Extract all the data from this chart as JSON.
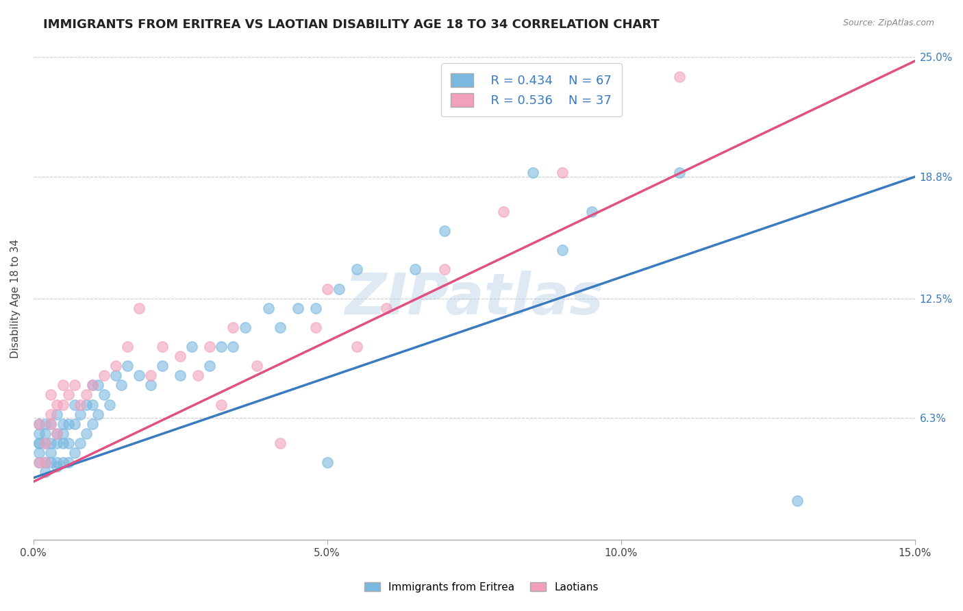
{
  "title": "IMMIGRANTS FROM ERITREA VS LAOTIAN DISABILITY AGE 18 TO 34 CORRELATION CHART",
  "source": "Source: ZipAtlas.com",
  "ylabel": "Disability Age 18 to 34",
  "xmin": 0.0,
  "xmax": 0.15,
  "ymin": 0.0,
  "ymax": 0.25,
  "right_ytick_vals": [
    0.063,
    0.125,
    0.188,
    0.25
  ],
  "right_ytick_labels": [
    "6.3%",
    "12.5%",
    "18.8%",
    "25.0%"
  ],
  "xtick_vals": [
    0.0,
    0.05,
    0.1,
    0.15
  ],
  "xtick_labels": [
    "0.0%",
    "5.0%",
    "10.0%",
    "15.0%"
  ],
  "series1_label": "Immigrants from Eritrea",
  "series1_R": 0.434,
  "series1_N": 67,
  "series1_color": "#7ab8e0",
  "series1_line_color": "#3a7bbf",
  "series2_label": "Laotians",
  "series2_R": 0.536,
  "series2_N": 37,
  "series2_color": "#f2a0bc",
  "series2_line_color": "#e05080",
  "watermark": "ZIPatlas",
  "background_color": "#ffffff",
  "grid_color": "#cccccc",
  "title_color": "#222222",
  "title_fontsize": 13,
  "axis_label_fontsize": 11,
  "tick_fontsize": 11,
  "right_tick_color": "#3a7bbf",
  "legend_text_color": "#3a7bbf",
  "series1_x": [
    0.001,
    0.001,
    0.001,
    0.001,
    0.001,
    0.001,
    0.002,
    0.002,
    0.002,
    0.002,
    0.002,
    0.003,
    0.003,
    0.003,
    0.003,
    0.004,
    0.004,
    0.004,
    0.004,
    0.004,
    0.005,
    0.005,
    0.005,
    0.005,
    0.006,
    0.006,
    0.006,
    0.007,
    0.007,
    0.007,
    0.008,
    0.008,
    0.009,
    0.009,
    0.01,
    0.01,
    0.01,
    0.011,
    0.011,
    0.012,
    0.013,
    0.014,
    0.015,
    0.016,
    0.018,
    0.02,
    0.022,
    0.025,
    0.027,
    0.03,
    0.032,
    0.034,
    0.036,
    0.04,
    0.042,
    0.045,
    0.048,
    0.05,
    0.052,
    0.055,
    0.065,
    0.07,
    0.085,
    0.09,
    0.095,
    0.11,
    0.13
  ],
  "series1_y": [
    0.04,
    0.05,
    0.045,
    0.05,
    0.055,
    0.06,
    0.035,
    0.04,
    0.05,
    0.055,
    0.06,
    0.04,
    0.045,
    0.05,
    0.06,
    0.038,
    0.04,
    0.05,
    0.055,
    0.065,
    0.04,
    0.05,
    0.055,
    0.06,
    0.04,
    0.05,
    0.06,
    0.045,
    0.06,
    0.07,
    0.05,
    0.065,
    0.055,
    0.07,
    0.06,
    0.07,
    0.08,
    0.065,
    0.08,
    0.075,
    0.07,
    0.085,
    0.08,
    0.09,
    0.085,
    0.08,
    0.09,
    0.085,
    0.1,
    0.09,
    0.1,
    0.1,
    0.11,
    0.12,
    0.11,
    0.12,
    0.12,
    0.04,
    0.13,
    0.14,
    0.14,
    0.16,
    0.19,
    0.15,
    0.17,
    0.19,
    0.02
  ],
  "series2_x": [
    0.001,
    0.001,
    0.002,
    0.002,
    0.003,
    0.003,
    0.003,
    0.004,
    0.004,
    0.005,
    0.005,
    0.006,
    0.007,
    0.008,
    0.009,
    0.01,
    0.012,
    0.014,
    0.016,
    0.018,
    0.02,
    0.022,
    0.025,
    0.028,
    0.03,
    0.032,
    0.034,
    0.038,
    0.042,
    0.048,
    0.05,
    0.055,
    0.06,
    0.07,
    0.08,
    0.09,
    0.11
  ],
  "series2_y": [
    0.04,
    0.06,
    0.04,
    0.05,
    0.06,
    0.065,
    0.075,
    0.055,
    0.07,
    0.07,
    0.08,
    0.075,
    0.08,
    0.07,
    0.075,
    0.08,
    0.085,
    0.09,
    0.1,
    0.12,
    0.085,
    0.1,
    0.095,
    0.085,
    0.1,
    0.07,
    0.11,
    0.09,
    0.05,
    0.11,
    0.13,
    0.1,
    0.12,
    0.14,
    0.17,
    0.19,
    0.24
  ],
  "line1_x0": 0.0,
  "line1_y0": 0.032,
  "line1_x1": 0.15,
  "line1_y1": 0.188,
  "line2_x0": 0.0,
  "line2_y0": 0.03,
  "line2_x1": 0.15,
  "line2_y1": 0.248
}
